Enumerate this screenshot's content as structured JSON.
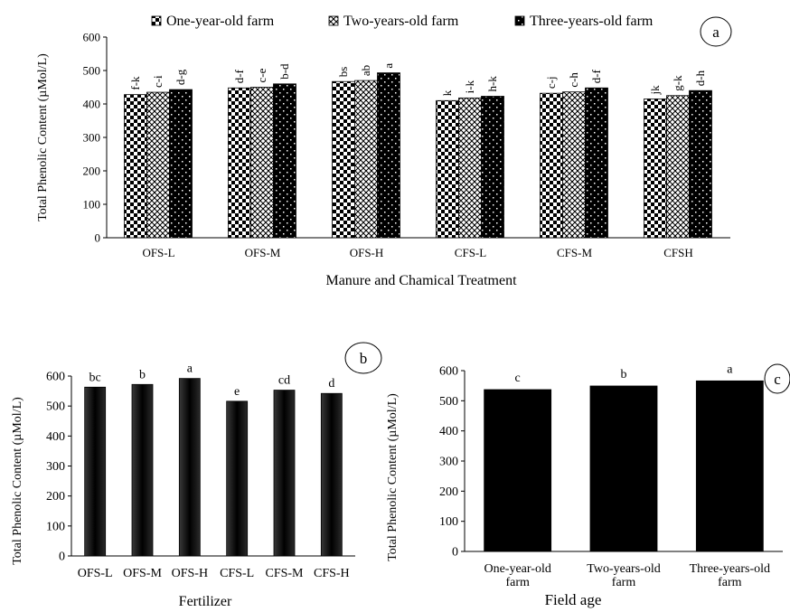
{
  "chart_data": [
    {
      "id": "a",
      "type": "bar",
      "panel_label": "a",
      "categories": [
        "OFS-L",
        "OFS-M",
        "OFS-H",
        "CFS-L",
        "CFS-M",
        "CFSH"
      ],
      "series": [
        {
          "name": "One-year-old farm",
          "pattern": "checker",
          "values": [
            428,
            448,
            467,
            410,
            432,
            415
          ],
          "letters": [
            "f-k",
            "d-f",
            "bs",
            "k",
            "c-j",
            "jk"
          ]
        },
        {
          "name": "Two-years-old farm",
          "pattern": "lattice",
          "values": [
            435,
            450,
            470,
            418,
            436,
            425
          ],
          "letters": [
            "c-i",
            "c-e",
            "ab",
            "i-k",
            "c-h",
            "g-k"
          ]
        },
        {
          "name": "Three-years-old farm",
          "pattern": "dark",
          "values": [
            443,
            460,
            493,
            423,
            448,
            440
          ],
          "letters": [
            "d-g",
            "b-d",
            "a",
            "h-k",
            "d-f",
            "d-h"
          ]
        }
      ],
      "xlabel": "Manure and Chamical Treatment",
      "ylabel": "Total Phenolic Content (µMol/L)",
      "ylim": [
        0,
        600
      ],
      "yticks": [
        0,
        100,
        200,
        300,
        400,
        500,
        600
      ],
      "legend_position": "top"
    },
    {
      "id": "b",
      "type": "bar",
      "panel_label": "b",
      "categories": [
        "OFS-L",
        "OFS-M",
        "OFS-H",
        "CFS-L",
        "CFS-M",
        "CFS-H"
      ],
      "values": [
        563,
        572,
        592,
        516,
        553,
        542
      ],
      "letters": [
        "bc",
        "b",
        "a",
        "e",
        "cd",
        "d"
      ],
      "xlabel": "Fertilizer",
      "ylabel": "Total Phenolic Content (µMol/L)",
      "ylim": [
        0,
        600
      ],
      "yticks": [
        0,
        100,
        200,
        300,
        400,
        500,
        600
      ],
      "bar_color": "#000000"
    },
    {
      "id": "c",
      "type": "bar",
      "panel_label": "c",
      "categories": [
        [
          "One-year-old",
          "farm"
        ],
        [
          "Two-years-old",
          "farm"
        ],
        [
          "Three-years-old",
          "farm"
        ]
      ],
      "values": [
        537,
        549,
        566
      ],
      "letters": [
        "c",
        "b",
        "a"
      ],
      "xlabel": "Field age",
      "ylabel": "Total Phenolic Content (µMol/L)",
      "ylim": [
        0,
        600
      ],
      "yticks": [
        0,
        100,
        200,
        300,
        400,
        500,
        600
      ],
      "bar_color": "#000000"
    }
  ]
}
